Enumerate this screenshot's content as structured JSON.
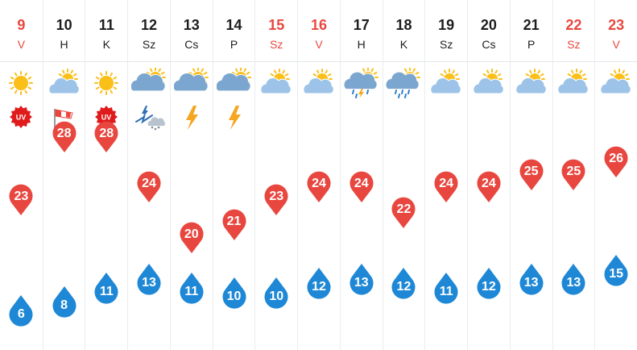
{
  "forecast": {
    "days": [
      {
        "date": "9",
        "weekday": "V",
        "weekend": true,
        "icon": "sun-icon",
        "extra": "uv-warning-icon",
        "extra_label": "UV",
        "max": "23",
        "min": "6",
        "max_c": 23,
        "min_c": 6
      },
      {
        "date": "10",
        "weekday": "H",
        "weekend": false,
        "icon": "sun-cloud-icon",
        "extra": "wind-sock-icon",
        "max": "28",
        "min": "8",
        "max_c": 28,
        "min_c": 8
      },
      {
        "date": "11",
        "weekday": "K",
        "weekend": false,
        "icon": "sun-icon",
        "extra": "uv-warning-icon",
        "extra_label": "UV",
        "max": "28",
        "min": "11",
        "max_c": 28,
        "min_c": 11
      },
      {
        "date": "12",
        "weekday": "Sz",
        "weekend": false,
        "icon": "sun-cloud-storm-icon",
        "extra": "storm-hail-icon",
        "max": "24",
        "min": "13",
        "max_c": 24,
        "min_c": 13
      },
      {
        "date": "13",
        "weekday": "Cs",
        "weekend": false,
        "icon": "sun-cloud-storm-icon",
        "extra": "lightning-icon",
        "max": "20",
        "min": "11",
        "max_c": 20,
        "min_c": 11
      },
      {
        "date": "14",
        "weekday": "P",
        "weekend": false,
        "icon": "sun-cloud-storm-icon",
        "extra": "lightning-icon",
        "max": "21",
        "min": "10",
        "max_c": 21,
        "min_c": 10
      },
      {
        "date": "15",
        "weekday": "Sz",
        "weekend": true,
        "icon": "sun-cloud-icon",
        "extra": "",
        "max": "23",
        "min": "10",
        "max_c": 23,
        "min_c": 10
      },
      {
        "date": "16",
        "weekday": "V",
        "weekend": true,
        "icon": "sun-cloud-icon",
        "extra": "",
        "max": "24",
        "min": "12",
        "max_c": 24,
        "min_c": 12
      },
      {
        "date": "17",
        "weekday": "H",
        "weekend": false,
        "icon": "sun-cloud-thunder-rain-icon",
        "extra": "",
        "max": "24",
        "min": "13",
        "max_c": 24,
        "min_c": 13
      },
      {
        "date": "18",
        "weekday": "K",
        "weekend": false,
        "icon": "sun-cloud-rain-icon",
        "extra": "",
        "max": "22",
        "min": "12",
        "max_c": 22,
        "min_c": 12
      },
      {
        "date": "19",
        "weekday": "Sz",
        "weekend": false,
        "icon": "sun-cloud-icon",
        "extra": "",
        "max": "24",
        "min": "11",
        "max_c": 24,
        "min_c": 11
      },
      {
        "date": "20",
        "weekday": "Cs",
        "weekend": false,
        "icon": "sun-cloud-icon",
        "extra": "",
        "max": "24",
        "min": "12",
        "max_c": 24,
        "min_c": 12
      },
      {
        "date": "21",
        "weekday": "P",
        "weekend": false,
        "icon": "sun-cloud-icon",
        "extra": "",
        "max": "25",
        "min": "13",
        "max_c": 25,
        "min_c": 13
      },
      {
        "date": "22",
        "weekday": "Sz",
        "weekend": true,
        "icon": "sun-cloud-icon",
        "extra": "",
        "max": "25",
        "min": "13",
        "max_c": 25,
        "min_c": 13
      },
      {
        "date": "23",
        "weekday": "V",
        "weekend": true,
        "icon": "sun-cloud-icon",
        "extra": "",
        "max": "26",
        "min": "15",
        "max_c": 26,
        "min_c": 15
      }
    ]
  },
  "colors": {
    "max_marker": "#e8473f",
    "min_marker": "#1e88d6",
    "weekend_text": "#e8473f",
    "weekday_text": "#1d1d1f",
    "sun": "#fbbf1a",
    "cloud": "#9dc4e8",
    "storm_cloud": "#7aa6cf",
    "lightning": "#f5a623",
    "rain": "#2f7fc9"
  }
}
